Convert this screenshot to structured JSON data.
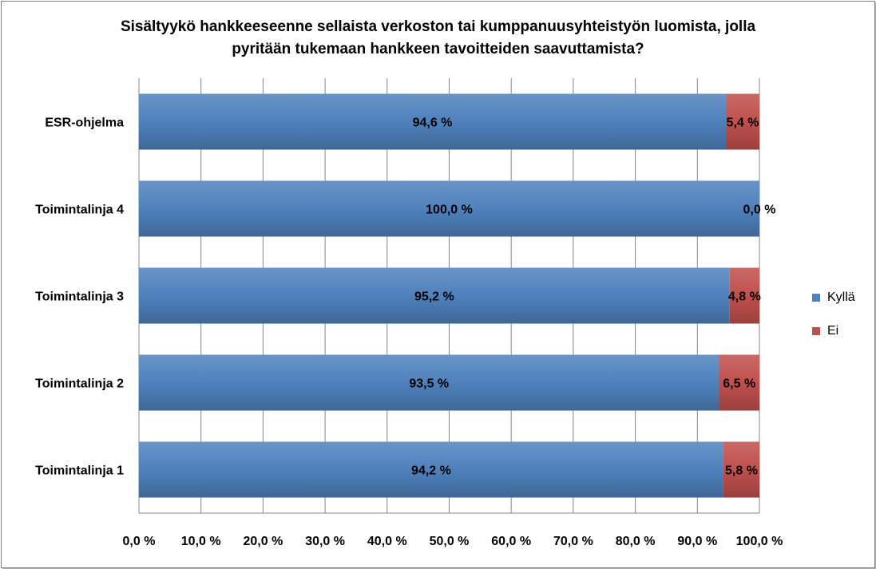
{
  "chart_data": {
    "type": "bar",
    "orientation": "horizontal",
    "stacked": true,
    "title": "Sisältyykö hankkeeseenne sellaista verkoston tai kumppanuusyhteistyön luomista, jolla pyritään tukemaan hankkeen tavoitteiden saavuttamista?",
    "title_lines": [
      "Sisältyykö hankkeeseenne sellaista verkoston tai kumppanuusyhteistyön luomista, jolla",
      "pyritään tukemaan hankkeen tavoitteiden saavuttamista?"
    ],
    "categories": [
      "ESR-ohjelma",
      "Toimintalinja 4",
      "Toimintalinja 3",
      "Toimintalinja 2",
      "Toimintalinja 1"
    ],
    "series": [
      {
        "name": "Kyllä",
        "color": "#4F81BD",
        "values": [
          94.6,
          100.0,
          95.2,
          93.5,
          94.2
        ],
        "labels": [
          "94,6 %",
          "100,0 %",
          "95,2 %",
          "93,5 %",
          "94,2 %"
        ]
      },
      {
        "name": "Ei",
        "color": "#C0504D",
        "values": [
          5.4,
          0.0,
          4.8,
          6.5,
          5.8
        ],
        "labels": [
          "5,4 %",
          "0,0 %",
          "4,8 %",
          "6,5 %",
          "5,8 %"
        ]
      }
    ],
    "xlim": [
      0,
      100
    ],
    "xticks": [
      0,
      10,
      20,
      30,
      40,
      50,
      60,
      70,
      80,
      90,
      100
    ],
    "xtick_labels": [
      "0,0 %",
      "10,0 %",
      "20,0 %",
      "30,0 %",
      "40,0 %",
      "50,0 %",
      "60,0 %",
      "70,0 %",
      "80,0 %",
      "90,0 %",
      "100,0 %"
    ],
    "grid": true,
    "legend_position": "right"
  }
}
